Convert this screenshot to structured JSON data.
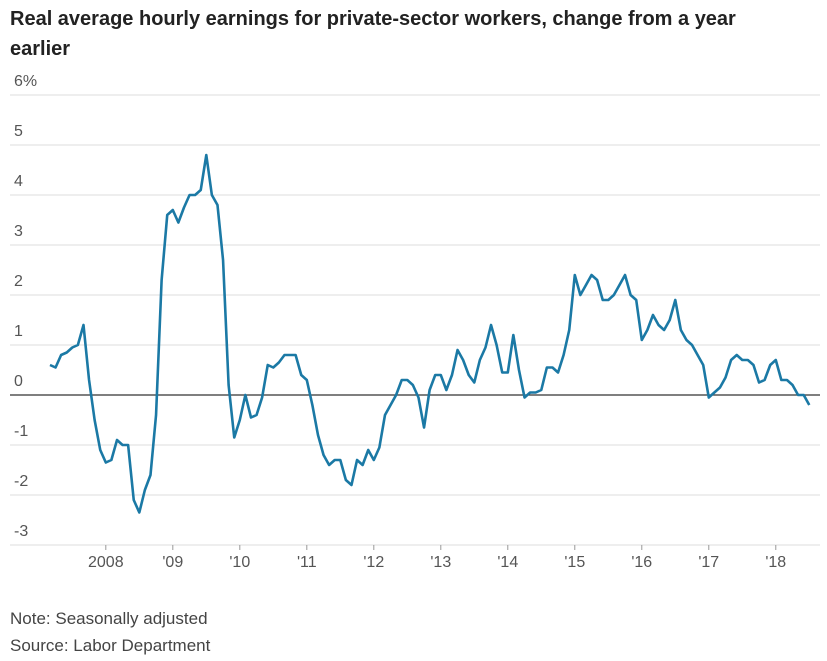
{
  "chart_data": {
    "type": "line",
    "title": "Real average hourly earnings for private-sector workers, change from a year earlier",
    "note": "Note: Seasonally adjusted",
    "source": "Source: Labor Department",
    "color": "#1b79a5",
    "x": [
      2007.167,
      2007.25,
      2007.333,
      2007.417,
      2007.5,
      2007.583,
      2007.667,
      2007.75,
      2007.833,
      2007.917,
      2008,
      2008.083,
      2008.167,
      2008.25,
      2008.333,
      2008.417,
      2008.5,
      2008.583,
      2008.667,
      2008.75,
      2008.833,
      2008.917,
      2009,
      2009.083,
      2009.167,
      2009.25,
      2009.333,
      2009.417,
      2009.5,
      2009.583,
      2009.667,
      2009.75,
      2009.833,
      2009.917,
      2010,
      2010.083,
      2010.167,
      2010.25,
      2010.333,
      2010.417,
      2010.5,
      2010.583,
      2010.667,
      2010.75,
      2010.833,
      2010.917,
      2011,
      2011.083,
      2011.167,
      2011.25,
      2011.333,
      2011.417,
      2011.5,
      2011.583,
      2011.667,
      2011.75,
      2011.833,
      2011.917,
      2012,
      2012.083,
      2012.167,
      2012.25,
      2012.333,
      2012.417,
      2012.5,
      2012.583,
      2012.667,
      2012.75,
      2012.833,
      2012.917,
      2013,
      2013.083,
      2013.167,
      2013.25,
      2013.333,
      2013.417,
      2013.5,
      2013.583,
      2013.667,
      2013.75,
      2013.833,
      2013.917,
      2014,
      2014.083,
      2014.167,
      2014.25,
      2014.333,
      2014.417,
      2014.5,
      2014.583,
      2014.667,
      2014.75,
      2014.833,
      2014.917,
      2015,
      2015.083,
      2015.167,
      2015.25,
      2015.333,
      2015.417,
      2015.5,
      2015.583,
      2015.667,
      2015.75,
      2015.833,
      2015.917,
      2016,
      2016.083,
      2016.167,
      2016.25,
      2016.333,
      2016.417,
      2016.5,
      2016.583,
      2016.667,
      2016.75,
      2016.833,
      2016.917,
      2017,
      2017.083,
      2017.167,
      2017.25,
      2017.333,
      2017.417,
      2017.5,
      2017.583,
      2017.667,
      2017.75,
      2017.833,
      2017.917,
      2018,
      2018.083,
      2018.167,
      2018.25,
      2018.333,
      2018.417,
      2018.5
    ],
    "values": [
      0.6,
      0.55,
      0.8,
      0.85,
      0.95,
      1.0,
      1.4,
      0.3,
      -0.5,
      -1.1,
      -1.35,
      -1.3,
      -0.9,
      -1.0,
      -1.0,
      -2.1,
      -2.35,
      -1.9,
      -1.6,
      -0.4,
      2.3,
      3.6,
      3.7,
      3.45,
      3.75,
      4.0,
      4.0,
      4.1,
      4.8,
      4.0,
      3.8,
      2.7,
      0.2,
      -0.85,
      -0.5,
      0.0,
      -0.45,
      -0.4,
      -0.05,
      0.6,
      0.55,
      0.65,
      0.8,
      0.8,
      0.8,
      0.4,
      0.3,
      -0.2,
      -0.8,
      -1.2,
      -1.4,
      -1.3,
      -1.3,
      -1.7,
      -1.8,
      -1.3,
      -1.4,
      -1.1,
      -1.3,
      -1.05,
      -0.4,
      -0.2,
      0.0,
      0.3,
      0.3,
      0.2,
      -0.05,
      -0.65,
      0.1,
      0.4,
      0.4,
      0.1,
      0.4,
      0.9,
      0.7,
      0.4,
      0.25,
      0.7,
      0.95,
      1.4,
      1.0,
      0.45,
      0.45,
      1.2,
      0.5,
      -0.05,
      0.05,
      0.05,
      0.1,
      0.55,
      0.55,
      0.45,
      0.8,
      1.3,
      2.4,
      2.0,
      2.2,
      2.4,
      2.3,
      1.9,
      1.9,
      2.0,
      2.2,
      2.4,
      2.0,
      1.9,
      1.1,
      1.3,
      1.6,
      1.4,
      1.3,
      1.5,
      1.9,
      1.3,
      1.1,
      1.0,
      0.8,
      0.6,
      -0.05,
      0.05,
      0.15,
      0.35,
      0.7,
      0.8,
      0.7,
      0.7,
      0.6,
      0.25,
      0.3,
      0.6,
      0.7,
      0.3,
      0.3,
      0.2,
      0.0,
      0.0,
      -0.2
    ],
    "xlim": [
      2006.57,
      2018.66
    ],
    "xticks": [
      {
        "value": 2008,
        "label": "2008"
      },
      {
        "value": 2009,
        "label": "'09"
      },
      {
        "value": 2010,
        "label": "'10"
      },
      {
        "value": 2011,
        "label": "'11"
      },
      {
        "value": 2012,
        "label": "'12"
      },
      {
        "value": 2013,
        "label": "'13"
      },
      {
        "value": 2014,
        "label": "'14"
      },
      {
        "value": 2015,
        "label": "'15"
      },
      {
        "value": 2016,
        "label": "'16"
      },
      {
        "value": 2017,
        "label": "'17"
      },
      {
        "value": 2018,
        "label": "'18"
      }
    ],
    "ylim": [
      -3,
      6
    ],
    "yticks": [
      -3,
      -2,
      -1,
      0,
      1,
      2,
      3,
      4,
      {
        "value": 5,
        "label": "5"
      },
      {
        "value": 6,
        "label": "6%"
      }
    ],
    "grid": true
  }
}
